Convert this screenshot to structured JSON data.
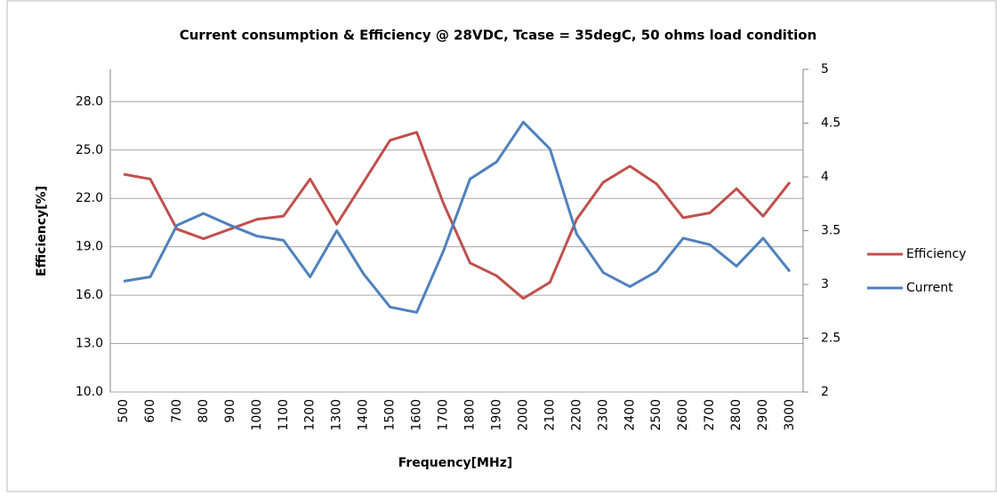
{
  "chart_data": {
    "type": "line",
    "title": "Current consumption & Efficiency @ 28VDC, Tcase = 35degC, 50 ohms load condition",
    "x_label": "Frequency[MHz]",
    "y_label": "Efficiency[%]",
    "categories": [
      "500",
      "600",
      "700",
      "800",
      "900",
      "1000",
      "1100",
      "1200",
      "1300",
      "1400",
      "1500",
      "1600",
      "1700",
      "1800",
      "1900",
      "2000",
      "2100",
      "2200",
      "2300",
      "2400",
      "2500",
      "2600",
      "2700",
      "2800",
      "2900",
      "3000"
    ],
    "series": [
      {
        "name": "Efficiency",
        "color": "#c0504d",
        "axis": "y",
        "values": [
          23.5,
          23.2,
          20.1,
          19.5,
          20.1,
          20.7,
          20.9,
          23.2,
          20.4,
          23.0,
          25.6,
          26.1,
          21.7,
          18.0,
          17.2,
          15.8,
          16.8,
          20.7,
          23.0,
          24.0,
          22.9,
          20.8,
          21.1,
          22.6,
          20.9,
          23.0
        ]
      },
      {
        "name": "Current",
        "color": "#4f81bd",
        "axis": "y2",
        "values": [
          3.03,
          3.07,
          3.55,
          3.66,
          3.55,
          3.45,
          3.41,
          3.07,
          3.5,
          3.1,
          2.79,
          2.74,
          3.31,
          3.98,
          4.14,
          4.51,
          4.26,
          3.47,
          3.11,
          2.98,
          3.12,
          3.43,
          3.37,
          3.17,
          3.43,
          3.12
        ]
      }
    ],
    "ylim": [
      10,
      30
    ],
    "yticks": [
      {
        "value": 10,
        "label": "10.0"
      },
      {
        "value": 13,
        "label": "13.0"
      },
      {
        "value": 16,
        "label": "16.0"
      },
      {
        "value": 19,
        "label": "19.0"
      },
      {
        "value": 22,
        "label": "22.0"
      },
      {
        "value": 25,
        "label": "25.0"
      },
      {
        "value": 28,
        "label": "28.0"
      }
    ],
    "y2lim": [
      2,
      5
    ],
    "y2ticks": [
      2,
      2.5,
      3,
      3.5,
      4,
      4.5,
      5
    ],
    "grid": true,
    "legend": "right"
  }
}
